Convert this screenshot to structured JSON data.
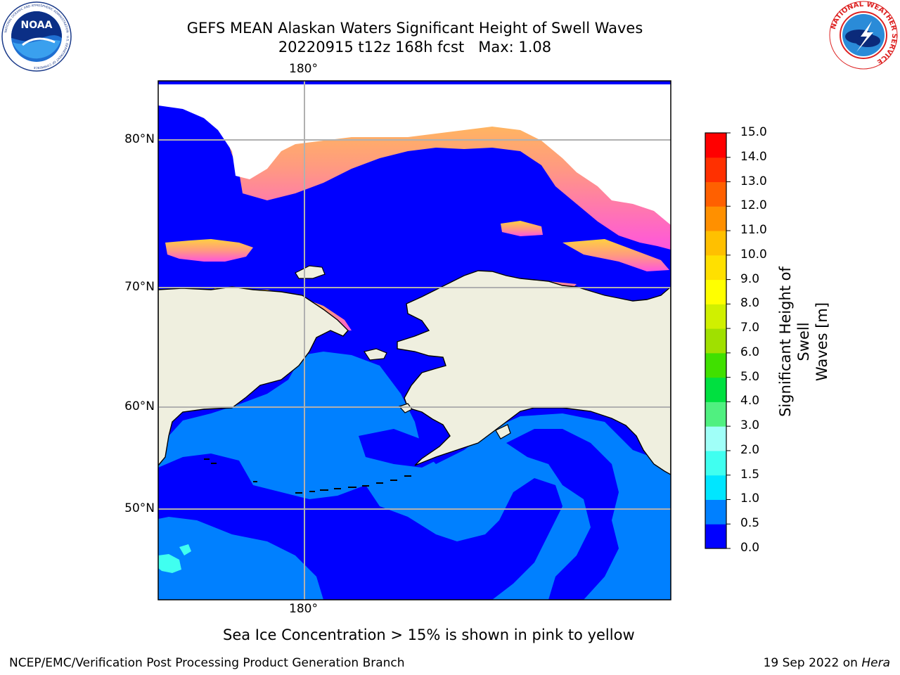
{
  "header": {
    "title_line1": "GEFS MEAN Alaskan Waters Significant Height of Swell Waves",
    "title_line2": "20220915 t12z 168h fcst   Max: 1.08"
  },
  "logos": {
    "left": "noaa-logo",
    "left_text": "NOAA",
    "left_ring_text": "NATIONAL OCEANIC AND ATMOSPHERIC ADMINISTRATION · U.S. DEPARTMENT OF COMMERCE",
    "right": "nws-logo",
    "right_ring_text": "NATIONAL WEATHER SERVICE"
  },
  "map": {
    "lon_label_top": "180°",
    "lon_label_bottom": "180°",
    "lat_labels": [
      "80°N",
      "70°N",
      "60°N",
      "50°N"
    ],
    "colors": {
      "deep_swell": "#0000ff",
      "light_swell": "#0080ff",
      "cyan_swell": "#00ffff",
      "land": "#efefdf",
      "ice_low": "#ff55dd",
      "ice_high": "#ffd040",
      "grid": "#b0b0b0"
    }
  },
  "colorbar": {
    "title_line1": "Significant Height of Swell",
    "title_line2": "Waves [m]",
    "ticks": [
      "0.0",
      "0.5",
      "1.0",
      "1.5",
      "2.0",
      "3.0",
      "4.0",
      "5.0",
      "6.0",
      "7.0",
      "8.0",
      "9.0",
      "10.0",
      "11.0",
      "12.0",
      "13.0",
      "14.0",
      "15.0"
    ],
    "colors": [
      "#0000ff",
      "#0080ff",
      "#00e6ff",
      "#40fff0",
      "#a0fff8",
      "#50f080",
      "#00e040",
      "#40e000",
      "#a0e000",
      "#d0f000",
      "#ffff00",
      "#ffe000",
      "#ffc000",
      "#ff9000",
      "#ff6000",
      "#ff3000",
      "#ff0000"
    ]
  },
  "notes": {
    "ice_note": "Sea Ice Concentration > 15% is shown in pink to yellow"
  },
  "footer": {
    "left": "NCEP/EMC/Verification Post Processing Product Generation Branch",
    "right_date": "19 Sep 2022 on ",
    "right_machine": "Hera"
  }
}
